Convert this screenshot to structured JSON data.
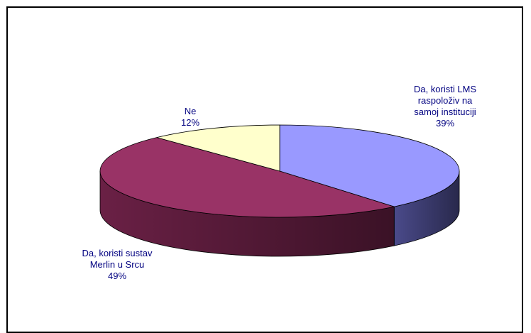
{
  "chart_data": {
    "type": "pie",
    "style": "3d",
    "title": "",
    "slices": [
      {
        "label": [
          "Da, koristi LMS",
          "raspoloživ na",
          "samoj instituciji"
        ],
        "pct_label": "39%",
        "value": 39,
        "color": "#9999ff",
        "side_color": "#4a4a8a"
      },
      {
        "label": [
          "Da, koristi sustav",
          "Merlin u Srcu"
        ],
        "pct_label": "49%",
        "value": 49,
        "color": "#993366",
        "side_color": "#6a2045"
      },
      {
        "label": [
          "Ne"
        ],
        "pct_label": "12%",
        "value": 12,
        "color": "#ffffcc",
        "side_color": "#bdbd8f"
      }
    ],
    "label_color": "#000080"
  }
}
